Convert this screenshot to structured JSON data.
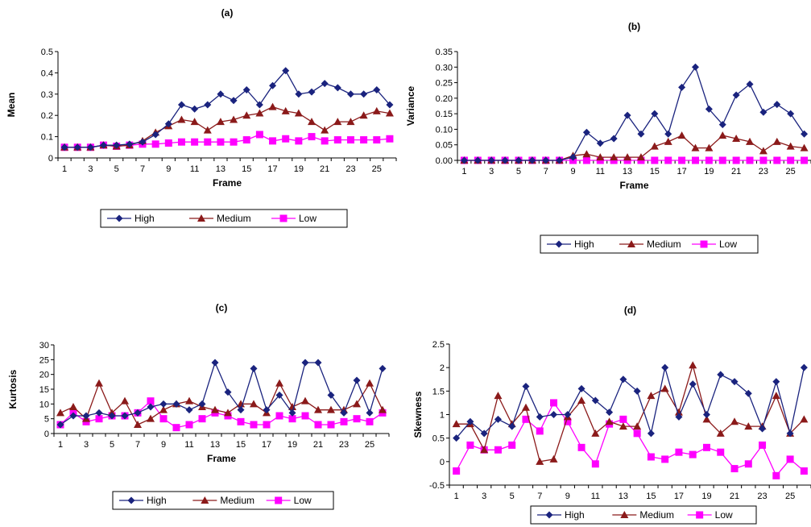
{
  "colors": {
    "high": "#1a237e",
    "medium": "#8b1a1a",
    "low": "#ff00ff"
  },
  "chart_data": [
    {
      "type": "line",
      "title": "(a)",
      "xlabel": "Frame",
      "ylabel": "Mean",
      "x": [
        1,
        2,
        3,
        4,
        5,
        6,
        7,
        8,
        9,
        10,
        11,
        12,
        13,
        14,
        15,
        16,
        17,
        18,
        19,
        20,
        21,
        22,
        23,
        24,
        25,
        26
      ],
      "x_tick_labels": [
        "1",
        "3",
        "5",
        "7",
        "9",
        "11",
        "13",
        "15",
        "17",
        "19",
        "21",
        "23",
        "25"
      ],
      "y_tick_labels": [
        "0",
        "0.1",
        "0.2",
        "0.3",
        "0.4",
        "0.5"
      ],
      "ylim": [
        0,
        0.5
      ],
      "y_ticks": [
        0,
        0.1,
        0.2,
        0.3,
        0.4,
        0.5
      ],
      "legend": "bottom",
      "grid": false,
      "series": [
        {
          "name": "High",
          "marker": "diamond",
          "values": [
            0.05,
            0.05,
            0.05,
            0.06,
            0.06,
            0.065,
            0.075,
            0.11,
            0.16,
            0.25,
            0.23,
            0.25,
            0.3,
            0.27,
            0.32,
            0.25,
            0.34,
            0.41,
            0.3,
            0.31,
            0.35,
            0.33,
            0.3,
            0.3,
            0.32,
            0.25
          ]
        },
        {
          "name": "Medium",
          "marker": "triangle",
          "values": [
            0.05,
            0.05,
            0.05,
            0.06,
            0.055,
            0.06,
            0.08,
            0.12,
            0.15,
            0.18,
            0.17,
            0.13,
            0.17,
            0.18,
            0.2,
            0.21,
            0.24,
            0.22,
            0.21,
            0.17,
            0.13,
            0.17,
            0.17,
            0.2,
            0.22,
            0.21
          ]
        },
        {
          "name": "Low",
          "marker": "square",
          "values": [
            0.05,
            0.05,
            0.05,
            0.06,
            0.055,
            0.06,
            0.065,
            0.065,
            0.07,
            0.075,
            0.075,
            0.075,
            0.075,
            0.075,
            0.085,
            0.11,
            0.08,
            0.09,
            0.08,
            0.1,
            0.08,
            0.085,
            0.085,
            0.085,
            0.085,
            0.09
          ]
        }
      ]
    },
    {
      "type": "line",
      "title": "(b)",
      "xlabel": "Frame",
      "ylabel": "Variance",
      "x": [
        1,
        2,
        3,
        4,
        5,
        6,
        7,
        8,
        9,
        10,
        11,
        12,
        13,
        14,
        15,
        16,
        17,
        18,
        19,
        20,
        21,
        22,
        23,
        24,
        25,
        26
      ],
      "x_tick_labels": [
        "1",
        "3",
        "5",
        "7",
        "9",
        "11",
        "13",
        "15",
        "17",
        "19",
        "21",
        "23",
        "25"
      ],
      "y_tick_labels": [
        "0.00",
        "0.05",
        "0.10",
        "0.15",
        "0.20",
        "0.25",
        "0.30",
        "0.35"
      ],
      "ylim": [
        0,
        0.35
      ],
      "y_ticks": [
        0,
        0.05,
        0.1,
        0.15,
        0.2,
        0.25,
        0.3,
        0.35
      ],
      "legend": "bottom",
      "grid": false,
      "series": [
        {
          "name": "High",
          "marker": "diamond",
          "values": [
            0,
            0,
            0,
            0,
            0,
            0,
            0,
            0,
            0.01,
            0.09,
            0.055,
            0.07,
            0.145,
            0.085,
            0.15,
            0.085,
            0.235,
            0.3,
            0.165,
            0.115,
            0.21,
            0.245,
            0.155,
            0.18,
            0.15,
            0.085
          ]
        },
        {
          "name": "Medium",
          "marker": "triangle",
          "values": [
            0,
            0,
            0,
            0,
            0,
            0,
            0,
            0,
            0.015,
            0.02,
            0.01,
            0.01,
            0.01,
            0.01,
            0.045,
            0.06,
            0.08,
            0.04,
            0.04,
            0.08,
            0.07,
            0.06,
            0.03,
            0.06,
            0.045,
            0.04
          ]
        },
        {
          "name": "Low",
          "marker": "square",
          "values": [
            0,
            0,
            0,
            0,
            0,
            0,
            0,
            0,
            0,
            0,
            0,
            0,
            0,
            0,
            0,
            0,
            0,
            0,
            0,
            0,
            0,
            0,
            0,
            0,
            0,
            0
          ]
        }
      ]
    },
    {
      "type": "line",
      "title": "(c)",
      "xlabel": "Frame",
      "ylabel": "Kurtosis",
      "x": [
        1,
        2,
        3,
        4,
        5,
        6,
        7,
        8,
        9,
        10,
        11,
        12,
        13,
        14,
        15,
        16,
        17,
        18,
        19,
        20,
        21,
        22,
        23,
        24,
        25,
        26
      ],
      "x_tick_labels": [
        "1",
        "3",
        "5",
        "7",
        "9",
        "11",
        "13",
        "15",
        "17",
        "19",
        "21",
        "23",
        "25"
      ],
      "y_tick_labels": [
        "0",
        "5",
        "10",
        "15",
        "20",
        "25",
        "30"
      ],
      "ylim": [
        0,
        30
      ],
      "y_ticks": [
        0,
        5,
        10,
        15,
        20,
        25,
        30
      ],
      "legend": "bottom",
      "grid": false,
      "series": [
        {
          "name": "High",
          "marker": "diamond",
          "values": [
            3,
            6,
            6,
            7,
            6,
            6,
            7,
            9,
            10,
            10,
            8,
            10,
            24,
            14,
            8,
            22,
            8,
            13,
            7,
            24,
            24,
            13,
            7,
            18,
            7,
            22
          ]
        },
        {
          "name": "Medium",
          "marker": "triangle",
          "values": [
            7,
            9,
            5,
            17,
            7,
            11,
            3,
            5,
            8,
            10,
            11,
            9,
            8,
            7,
            10,
            10,
            7,
            17,
            9,
            11,
            8,
            8,
            8,
            10,
            17,
            8
          ]
        },
        {
          "name": "Low",
          "marker": "square",
          "values": [
            3,
            7,
            4,
            5,
            6,
            6,
            7,
            11,
            5,
            2,
            3,
            5,
            7,
            6,
            4,
            3,
            3,
            6,
            5,
            6,
            3,
            3,
            4,
            5,
            4,
            7
          ]
        }
      ]
    },
    {
      "type": "line",
      "title": "(d)",
      "xlabel": "Frame",
      "ylabel": "Skewness",
      "x": [
        1,
        2,
        3,
        4,
        5,
        6,
        7,
        8,
        9,
        10,
        11,
        12,
        13,
        14,
        15,
        16,
        17,
        18,
        19,
        20,
        21,
        22,
        23,
        24,
        25,
        26
      ],
      "x_tick_labels": [
        "1",
        "3",
        "5",
        "7",
        "9",
        "11",
        "13",
        "15",
        "17",
        "19",
        "21",
        "23",
        "25"
      ],
      "y_tick_labels": [
        "-0.5",
        "0",
        "0.5",
        "1",
        "1.5",
        "2",
        "2.5"
      ],
      "ylim": [
        -0.5,
        2.5
      ],
      "y_ticks": [
        -0.5,
        0,
        0.5,
        1,
        1.5,
        2,
        2.5
      ],
      "legend": "bottom",
      "grid": false,
      "series": [
        {
          "name": "High",
          "marker": "diamond",
          "values": [
            0.5,
            0.85,
            0.6,
            0.9,
            0.75,
            1.6,
            0.95,
            1.0,
            1.0,
            1.55,
            1.3,
            1.05,
            1.75,
            1.5,
            0.6,
            2.0,
            0.95,
            1.65,
            1.0,
            1.85,
            1.7,
            1.45,
            0.7,
            1.7,
            0.6,
            2.0
          ]
        },
        {
          "name": "Medium",
          "marker": "triangle",
          "values": [
            0.8,
            0.8,
            0.25,
            1.4,
            0.8,
            1.15,
            0.0,
            0.05,
            0.95,
            1.3,
            0.6,
            0.85,
            0.75,
            0.75,
            1.4,
            1.55,
            1.05,
            2.05,
            0.9,
            0.6,
            0.85,
            0.75,
            0.75,
            1.4,
            0.6,
            0.9
          ]
        },
        {
          "name": "Low",
          "marker": "square",
          "values": [
            -0.2,
            0.35,
            0.25,
            0.25,
            0.35,
            0.9,
            0.65,
            1.25,
            0.85,
            0.3,
            -0.05,
            0.8,
            0.9,
            0.6,
            0.1,
            0.05,
            0.2,
            0.15,
            0.3,
            0.2,
            -0.15,
            -0.05,
            0.35,
            -0.3,
            0.05,
            -0.2
          ]
        }
      ]
    }
  ]
}
